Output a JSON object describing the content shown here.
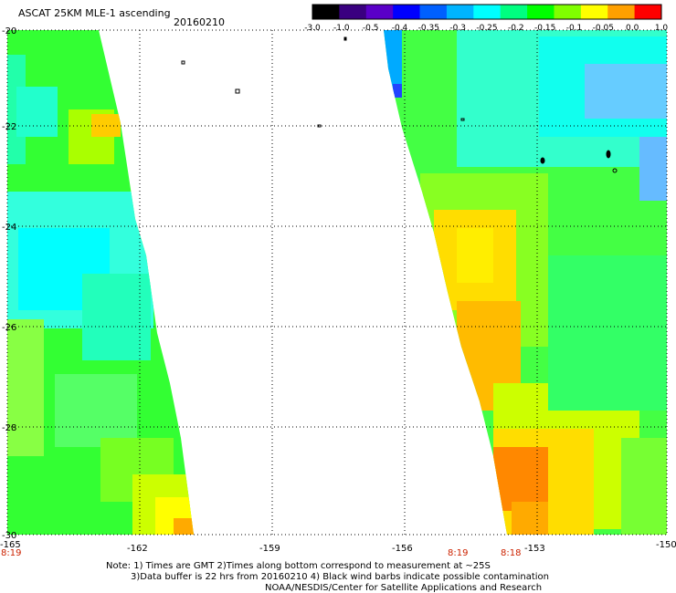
{
  "header": {
    "title": "ASCAT 25KM MLE-1 ascending",
    "date": "20160210"
  },
  "colorbar": {
    "labels": [
      "-3.0",
      "-1.0",
      "-0.5",
      "-0.4",
      "-0.35",
      "-0.3",
      "-0.25",
      "-0.2",
      "-0.15",
      "-0.1",
      "-0.05",
      "0.0",
      "1.0"
    ],
    "colors": [
      "#000000",
      "#3a0080",
      "#5a00c8",
      "#0000ff",
      "#0060ff",
      "#00b4ff",
      "#00ffff",
      "#00ff80",
      "#00ff00",
      "#80ff00",
      "#ffff00",
      "#ffa000",
      "#ff0000"
    ]
  },
  "axes": {
    "lat_ticks": [
      "-20",
      "-22",
      "-24",
      "-26",
      "-28",
      "-30"
    ],
    "lon_ticks": [
      "-165",
      "-162",
      "-159",
      "-156",
      "-153",
      "-150"
    ]
  },
  "time_labels": [
    "8:19",
    "8:19",
    "8:18"
  ],
  "notes": {
    "line1": "Note: 1) Times are GMT 2)Times along bottom correspond to measurement at ~25S",
    "line2": "3)Data buffer is 22 hrs from 20160210 4) Black wind barbs indicate possible contamination",
    "line3": "NOAA/NESDIS/Center for Satellite Applications and Research"
  }
}
